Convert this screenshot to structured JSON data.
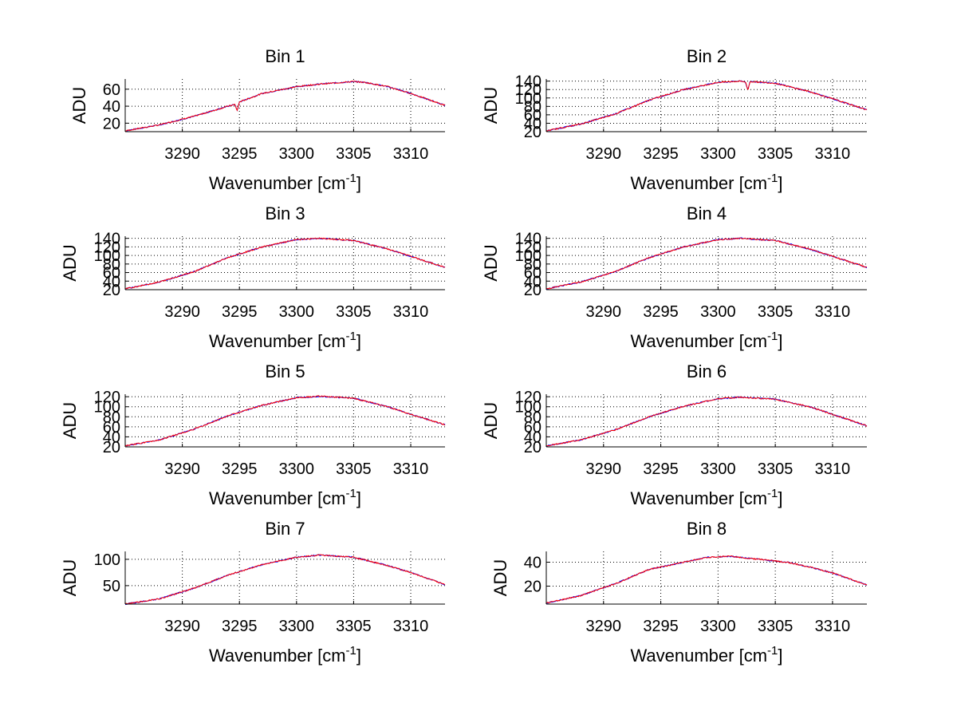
{
  "colors": {
    "background": "#ffffff",
    "axis": "#000000",
    "series_blue": "#0000ff",
    "series_red": "#ff0000"
  },
  "chart_data": [
    {
      "type": "line",
      "title": "Bin 1",
      "xlabel": "Wavenumber [cm",
      "xlabel_sup": "-1",
      "xlabel_end": "]",
      "ylabel": "ADU",
      "xlim": [
        3285,
        3313
      ],
      "ylim": [
        10,
        72
      ],
      "xticks": [
        3290,
        3295,
        3300,
        3305,
        3310
      ],
      "yticks": [
        20,
        40,
        60
      ],
      "grid": true,
      "peak": 69,
      "peak_x": 3305,
      "start": 11,
      "end": 41,
      "series": [
        {
          "x": [
            3285,
            3288,
            3291,
            3294,
            3294.6,
            3294.8,
            3295,
            3297,
            3300,
            3302,
            3304,
            3305,
            3306,
            3308,
            3310,
            3313
          ],
          "values": [
            11,
            18,
            28,
            40,
            42,
            35,
            45,
            55,
            63,
            66,
            68,
            69,
            68,
            63,
            55,
            41
          ]
        }
      ]
    },
    {
      "type": "line",
      "title": "Bin 2",
      "xlabel": "Wavenumber [cm",
      "xlabel_sup": "-1",
      "xlabel_end": "]",
      "ylabel": "ADU",
      "xlim": [
        3285,
        3313
      ],
      "ylim": [
        20,
        145
      ],
      "xticks": [
        3290,
        3295,
        3300,
        3305,
        3310
      ],
      "yticks": [
        20,
        40,
        60,
        80,
        100,
        120,
        140
      ],
      "grid": true,
      "peak": 140,
      "peak_x": 3302,
      "start": 22,
      "end": 72,
      "series": [
        {
          "x": [
            3285,
            3288,
            3291,
            3294,
            3297,
            3300,
            3302,
            3302.4,
            3302.6,
            3302.8,
            3305,
            3308,
            3310,
            3313
          ],
          "values": [
            22,
            38,
            62,
            95,
            120,
            137,
            140,
            138,
            118,
            139,
            135,
            115,
            98,
            72
          ]
        }
      ]
    },
    {
      "type": "line",
      "title": "Bin 3",
      "xlabel": "Wavenumber [cm",
      "xlabel_sup": "-1",
      "xlabel_end": "]",
      "ylabel": "ADU",
      "xlim": [
        3285,
        3313
      ],
      "ylim": [
        20,
        145
      ],
      "xticks": [
        3290,
        3295,
        3300,
        3305,
        3310
      ],
      "yticks": [
        20,
        40,
        60,
        80,
        100,
        120,
        140
      ],
      "grid": true,
      "peak": 140,
      "peak_x": 3302,
      "start": 22,
      "end": 72,
      "series": [
        {
          "x": [
            3285,
            3288,
            3291,
            3294,
            3297,
            3300,
            3302,
            3305,
            3308,
            3310,
            3313
          ],
          "values": [
            22,
            38,
            62,
            95,
            120,
            137,
            140,
            135,
            115,
            98,
            72
          ]
        }
      ]
    },
    {
      "type": "line",
      "title": "Bin 4",
      "xlabel": "Wavenumber [cm",
      "xlabel_sup": "-1",
      "xlabel_end": "]",
      "ylabel": "ADU",
      "xlim": [
        3285,
        3313
      ],
      "ylim": [
        20,
        145
      ],
      "xticks": [
        3290,
        3295,
        3300,
        3305,
        3310
      ],
      "yticks": [
        20,
        40,
        60,
        80,
        100,
        120,
        140
      ],
      "grid": true,
      "peak": 140,
      "peak_x": 3302,
      "start": 22,
      "end": 72,
      "series": [
        {
          "x": [
            3285,
            3288,
            3291,
            3294,
            3297,
            3300,
            3302,
            3305,
            3308,
            3310,
            3313
          ],
          "values": [
            22,
            38,
            62,
            95,
            120,
            137,
            140,
            135,
            115,
            98,
            72
          ]
        }
      ]
    },
    {
      "type": "line",
      "title": "Bin 5",
      "xlabel": "Wavenumber [cm",
      "xlabel_sup": "-1",
      "xlabel_end": "]",
      "ylabel": "ADU",
      "xlim": [
        3285,
        3313
      ],
      "ylim": [
        20,
        125
      ],
      "xticks": [
        3290,
        3295,
        3300,
        3305,
        3310
      ],
      "yticks": [
        20,
        40,
        60,
        80,
        100,
        120
      ],
      "grid": true,
      "peak": 121,
      "peak_x": 3302,
      "start": 22,
      "end": 64,
      "series": [
        {
          "x": [
            3285,
            3288,
            3291,
            3294,
            3297,
            3300,
            3302,
            3305,
            3308,
            3310,
            3313
          ],
          "values": [
            22,
            34,
            55,
            82,
            103,
            118,
            121,
            117,
            100,
            85,
            64
          ]
        }
      ]
    },
    {
      "type": "line",
      "title": "Bin 6",
      "xlabel": "Wavenumber [cm",
      "xlabel_sup": "-1",
      "xlabel_end": "]",
      "ylabel": "ADU",
      "xlim": [
        3285,
        3313
      ],
      "ylim": [
        20,
        125
      ],
      "xticks": [
        3290,
        3295,
        3300,
        3305,
        3310
      ],
      "yticks": [
        20,
        40,
        60,
        80,
        100,
        120
      ],
      "grid": true,
      "peak": 119,
      "peak_x": 3302,
      "start": 22,
      "end": 62,
      "series": [
        {
          "x": [
            3285,
            3288,
            3291,
            3294,
            3297,
            3300,
            3302,
            3305,
            3308,
            3310,
            3313
          ],
          "values": [
            22,
            34,
            54,
            80,
            101,
            116,
            119,
            115,
            100,
            85,
            62
          ]
        }
      ]
    },
    {
      "type": "line",
      "title": "Bin 7",
      "xlabel": "Wavenumber [cm",
      "xlabel_sup": "-1",
      "xlabel_end": "]",
      "ylabel": "ADU",
      "xlim": [
        3285,
        3313
      ],
      "ylim": [
        15,
        115
      ],
      "xticks": [
        3290,
        3295,
        3300,
        3305,
        3310
      ],
      "yticks": [
        50,
        100
      ],
      "grid": true,
      "peak": 108,
      "peak_x": 3302,
      "start": 15,
      "end": 52,
      "series": [
        {
          "x": [
            3285,
            3288,
            3291,
            3294,
            3297,
            3300,
            3302,
            3305,
            3308,
            3310,
            3313
          ],
          "values": [
            15,
            25,
            45,
            70,
            90,
            104,
            108,
            104,
            88,
            75,
            52
          ]
        }
      ]
    },
    {
      "type": "line",
      "title": "Bin 8",
      "xlabel": "Wavenumber [cm",
      "xlabel_sup": "-1",
      "xlabel_end": "]",
      "ylabel": "ADU",
      "xlim": [
        3285,
        3313
      ],
      "ylim": [
        5,
        49
      ],
      "xticks": [
        3290,
        3295,
        3300,
        3305,
        3310
      ],
      "yticks": [
        20,
        40
      ],
      "grid": true,
      "peak": 45,
      "peak_x": 3301,
      "start": 6,
      "end": 21,
      "series": [
        {
          "x": [
            3285,
            3288,
            3291,
            3294,
            3297,
            3299,
            3301,
            3303,
            3306,
            3308,
            3310,
            3313
          ],
          "values": [
            6,
            12,
            22,
            34,
            40,
            44,
            45,
            43,
            40,
            36,
            31,
            21
          ]
        }
      ]
    }
  ]
}
